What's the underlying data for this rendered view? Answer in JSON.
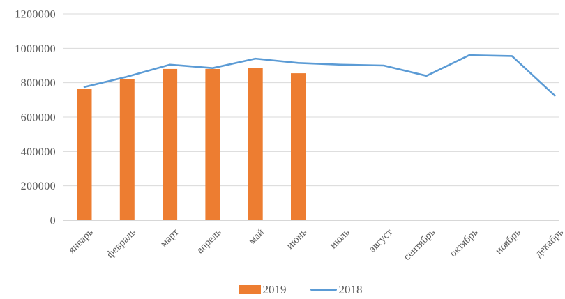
{
  "chart_data": {
    "type": "combo",
    "title": "",
    "xlabel": "",
    "ylabel": "",
    "categories": [
      "январь",
      "февраль",
      "март",
      "апрель",
      "май",
      "июнь",
      "июль",
      "август",
      "сентябрь",
      "октябрь",
      "ноябрь",
      "декабрь"
    ],
    "series": [
      {
        "name": "2019",
        "type": "bar",
        "color": "#ED7D31",
        "values": [
          765000,
          820000,
          880000,
          880000,
          885000,
          855000,
          null,
          null,
          null,
          null,
          null,
          null
        ]
      },
      {
        "name": "2018",
        "type": "line",
        "color": "#5B9BD5",
        "values": [
          775000,
          835000,
          905000,
          885000,
          940000,
          915000,
          905000,
          900000,
          840000,
          960000,
          955000,
          725000
        ]
      }
    ],
    "ylim": [
      0,
      1200000
    ],
    "ytick_step": 200000,
    "yticks": [
      "0",
      "200000",
      "400000",
      "600000",
      "800000",
      "1000000",
      "1200000"
    ],
    "grid": true,
    "legend_position": "bottom",
    "colors": {
      "grid": "#D9D9D9",
      "axis": "#BFBFBF",
      "text": "#595959",
      "background": "#FFFFFF"
    }
  }
}
